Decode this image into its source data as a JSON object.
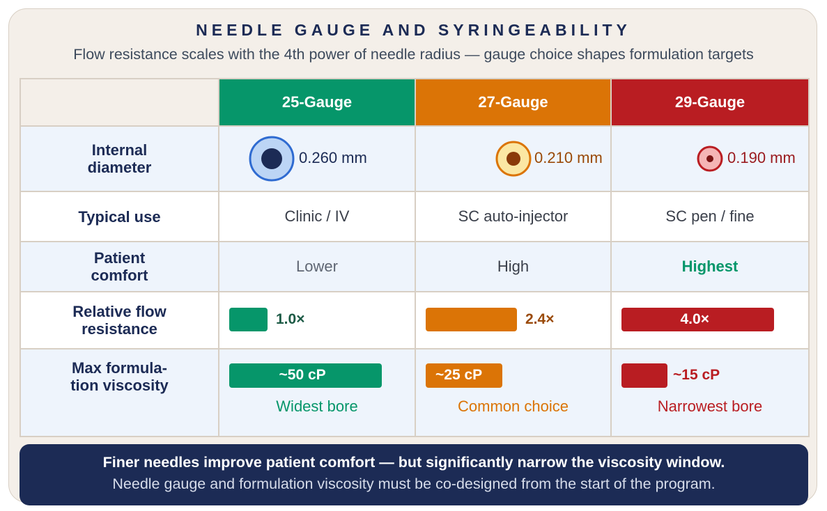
{
  "header": {
    "title": "NEEDLE GAUGE AND SYRINGEABILITY",
    "subtitle": "Flow resistance scales with the 4th power of needle radius — gauge choice shapes formulation targets"
  },
  "columns": [
    {
      "label": "25-Gauge",
      "color": "#06966a"
    },
    {
      "label": "27-Gauge",
      "color": "#db7406"
    },
    {
      "label": "29-Gauge",
      "color": "#b91d22"
    }
  ],
  "rows": {
    "internal_diameter": {
      "label": "Internal diameter",
      "values": [
        "0.260 mm",
        "0.210 mm",
        "0.190 mm"
      ]
    },
    "typical_use": {
      "label": "Typical use",
      "values": [
        "Clinic / IV",
        "SC auto-injector",
        "SC pen / fine"
      ]
    },
    "patient_comfort": {
      "label": "Patient comfort",
      "values": [
        "Lower",
        "High",
        "Highest"
      ]
    },
    "relative_flow_resistance": {
      "label": "Relative flow resistance",
      "values": [
        1.0,
        2.4,
        4.0
      ],
      "labels": [
        "1.0×",
        "2.4×",
        "4.0×"
      ]
    },
    "max_viscosity": {
      "label": "Max formula-tion viscosity",
      "values_cp": [
        50,
        25,
        15
      ],
      "labels": [
        "~50 cP",
        "~25 cP",
        "~15 cP"
      ],
      "notes": [
        "Widest bore",
        "Common choice",
        "Narrowest bore"
      ]
    }
  },
  "footer": {
    "headline": "Finer needles improve patient comfort — but significantly narrow the viscosity window.",
    "detail": "Needle gauge and formulation viscosity must be co-designed from the start of the program."
  }
}
